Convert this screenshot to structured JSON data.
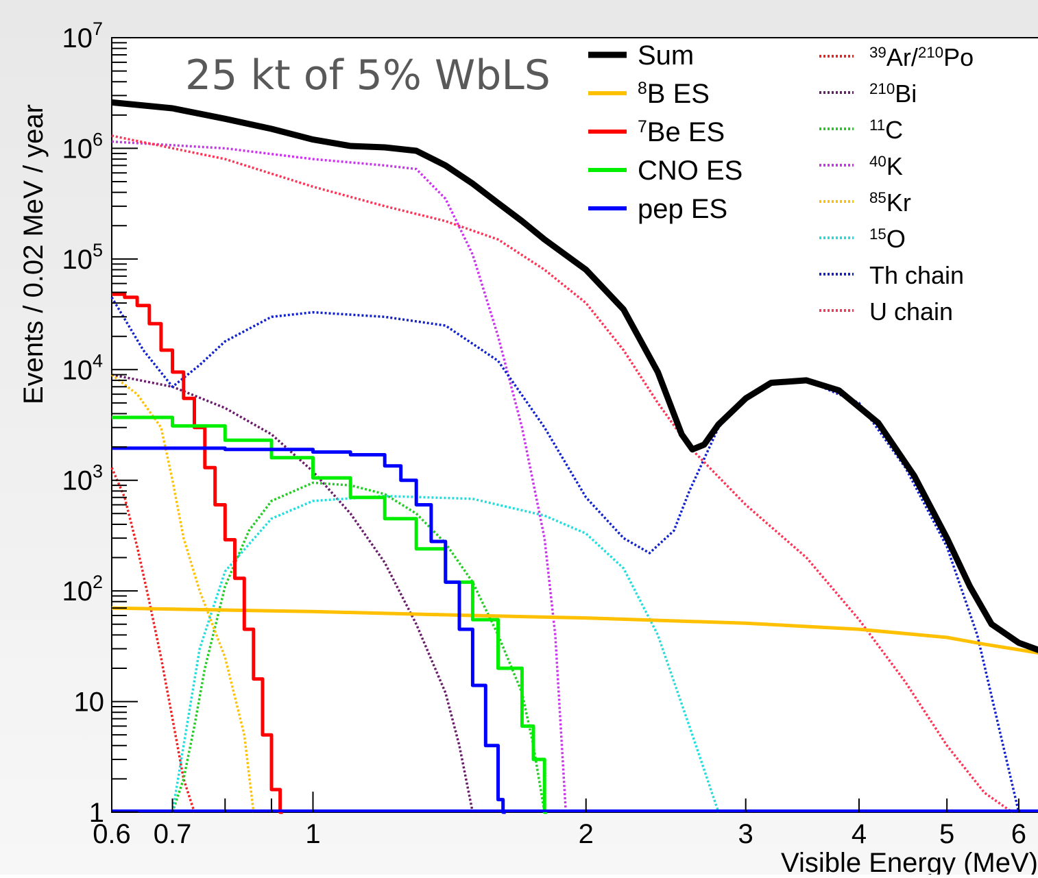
{
  "chart_data": {
    "type": "line",
    "annotation": "25 kt of 5% WbLS",
    "xlabel": "Visible Energy (MeV)",
    "ylabel": "Events / 0.02 MeV / year",
    "xscale": "log",
    "yscale": "log",
    "xlim": [
      0.6,
      6.4
    ],
    "ylim": [
      1,
      10000000
    ],
    "x_ticks": [
      {
        "value": 0.6,
        "label": "0.6"
      },
      {
        "value": 0.7,
        "label": "0.7"
      },
      {
        "value": 1,
        "label": "1"
      },
      {
        "value": 2,
        "label": "2"
      },
      {
        "value": 3,
        "label": "3"
      },
      {
        "value": 4,
        "label": "4"
      },
      {
        "value": 5,
        "label": "5"
      },
      {
        "value": 6,
        "label": "6"
      }
    ],
    "y_ticks": [
      {
        "value": 1,
        "base": "1",
        "exp": ""
      },
      {
        "value": 10,
        "base": "10",
        "exp": ""
      },
      {
        "value": 100,
        "base": "10",
        "exp": "2"
      },
      {
        "value": 1000,
        "base": "10",
        "exp": "3"
      },
      {
        "value": 10000,
        "base": "10",
        "exp": "4"
      },
      {
        "value": 100000,
        "base": "10",
        "exp": "5"
      },
      {
        "value": 1000000,
        "base": "10",
        "exp": "6"
      },
      {
        "value": 10000000,
        "base": "10",
        "exp": "7"
      }
    ],
    "legend_position": "top-right",
    "series": [
      {
        "name": "Sum",
        "color": "#000000",
        "style": "solid-thick",
        "legend_col": 0,
        "points": [
          [
            0.6,
            2600000.0
          ],
          [
            0.7,
            2300000.0
          ],
          [
            0.8,
            1850000.0
          ],
          [
            0.9,
            1500000.0
          ],
          [
            1.0,
            1200000.0
          ],
          [
            1.1,
            1050000.0
          ],
          [
            1.2,
            1020000.0
          ],
          [
            1.3,
            950000.0
          ],
          [
            1.4,
            700000.0
          ],
          [
            1.5,
            480000.0
          ],
          [
            1.6,
            320000.0
          ],
          [
            1.7,
            220000.0
          ],
          [
            1.8,
            150000.0
          ],
          [
            2.0,
            80000.0
          ],
          [
            2.2,
            35000.0
          ],
          [
            2.4,
            9500.0
          ],
          [
            2.55,
            2600.0
          ],
          [
            2.62,
            1900.0
          ],
          [
            2.7,
            2100.0
          ],
          [
            2.8,
            3200.0
          ],
          [
            3.0,
            5500.0
          ],
          [
            3.2,
            7600.0
          ],
          [
            3.5,
            8000.0
          ],
          [
            3.8,
            6500.0
          ],
          [
            4.2,
            3300.0
          ],
          [
            4.6,
            1100.0
          ],
          [
            5.0,
            300.0
          ],
          [
            5.3,
            110.0
          ],
          [
            5.6,
            50.0
          ],
          [
            6.0,
            34.0
          ],
          [
            6.4,
            28.0
          ]
        ]
      },
      {
        "name": "8B ES",
        "label_sup": "8",
        "label_text": "B ES",
        "color": "#ffc000",
        "style": "solid-thick",
        "legend_col": 0,
        "points": [
          [
            0.6,
            70
          ],
          [
            1.0,
            65
          ],
          [
            1.5,
            60
          ],
          [
            2.0,
            57
          ],
          [
            3.0,
            51
          ],
          [
            4.0,
            45
          ],
          [
            5.0,
            38
          ],
          [
            5.5,
            33
          ],
          [
            6.4,
            27
          ]
        ]
      },
      {
        "name": "7Be ES",
        "label_sup": "7",
        "label_text": "Be ES",
        "color": "#ff0000",
        "style": "step-thick",
        "legend_col": 0,
        "points": [
          [
            0.6,
            48000.0
          ],
          [
            0.62,
            45000.0
          ],
          [
            0.64,
            38000.0
          ],
          [
            0.66,
            26000.0
          ],
          [
            0.68,
            15000.0
          ],
          [
            0.7,
            9500.0
          ],
          [
            0.72,
            5500.0
          ],
          [
            0.74,
            3000.0
          ],
          [
            0.76,
            1300.0
          ],
          [
            0.78,
            600.0
          ],
          [
            0.8,
            290.0
          ],
          [
            0.82,
            130.0
          ],
          [
            0.84,
            45
          ],
          [
            0.86,
            16
          ],
          [
            0.88,
            5
          ],
          [
            0.9,
            1.6
          ],
          [
            0.92,
            1
          ]
        ]
      },
      {
        "name": "CNO ES",
        "label_sup": "",
        "label_text": "CNO ES",
        "color": "#00ee00",
        "style": "step-thick",
        "legend_col": 0,
        "points": [
          [
            0.6,
            3700.0
          ],
          [
            0.7,
            3100.0
          ],
          [
            0.8,
            2300.0
          ],
          [
            0.9,
            1600.0
          ],
          [
            1.0,
            1050.0
          ],
          [
            1.1,
            700.0
          ],
          [
            1.2,
            450.0
          ],
          [
            1.3,
            240.0
          ],
          [
            1.4,
            120.0
          ],
          [
            1.5,
            55
          ],
          [
            1.6,
            20
          ],
          [
            1.7,
            6
          ],
          [
            1.75,
            3
          ],
          [
            1.8,
            1
          ]
        ]
      },
      {
        "name": "pep ES",
        "label_sup": "",
        "label_text": "pep ES",
        "color": "#0000ff",
        "style": "step-thick",
        "legend_col": 0,
        "points": [
          [
            0.6,
            1950.0
          ],
          [
            0.8,
            1900.0
          ],
          [
            1.0,
            1800.0
          ],
          [
            1.1,
            1700.0
          ],
          [
            1.2,
            1350.0
          ],
          [
            1.25,
            1000.0
          ],
          [
            1.3,
            600.0
          ],
          [
            1.35,
            280.0
          ],
          [
            1.4,
            120.0
          ],
          [
            1.45,
            45
          ],
          [
            1.5,
            14
          ],
          [
            1.55,
            4
          ],
          [
            1.6,
            1.3
          ],
          [
            1.62,
            1
          ]
        ]
      },
      {
        "name": "39Ar/210Po",
        "label_sup": "39",
        "label_text": "Ar/",
        "label_sup2": "210",
        "label_text2": "Po",
        "color": "#ee2222",
        "style": "dotted",
        "legend_col": 1,
        "points": [
          [
            0.6,
            1300.0
          ],
          [
            0.62,
            700.0
          ],
          [
            0.64,
            250.0
          ],
          [
            0.66,
            80
          ],
          [
            0.68,
            25
          ],
          [
            0.7,
            7
          ],
          [
            0.72,
            2
          ],
          [
            0.74,
            1
          ]
        ]
      },
      {
        "name": "210Bi",
        "label_sup": "210",
        "label_text": "Bi",
        "color": "#6a1b6a",
        "style": "dotted",
        "legend_col": 1,
        "points": [
          [
            0.6,
            9000.0
          ],
          [
            0.7,
            7000.0
          ],
          [
            0.8,
            4500.0
          ],
          [
            0.9,
            2600.0
          ],
          [
            1.0,
            1200.0
          ],
          [
            1.1,
            500.0
          ],
          [
            1.2,
            180.0
          ],
          [
            1.3,
            50
          ],
          [
            1.4,
            12
          ],
          [
            1.45,
            4
          ],
          [
            1.5,
            1
          ]
        ]
      },
      {
        "name": "11C",
        "label_sup": "11",
        "label_text": "C",
        "color": "#22cc22",
        "style": "dotted",
        "legend_col": 1,
        "points": [
          [
            0.7,
            1
          ],
          [
            0.72,
            2
          ],
          [
            0.74,
            6
          ],
          [
            0.76,
            20
          ],
          [
            0.8,
            110.0
          ],
          [
            0.85,
            350.0
          ],
          [
            0.9,
            650.0
          ],
          [
            1.0,
            950.0
          ],
          [
            1.1,
            900.0
          ],
          [
            1.2,
            750.0
          ],
          [
            1.3,
            500.0
          ],
          [
            1.4,
            270.0
          ],
          [
            1.5,
            120.0
          ],
          [
            1.6,
            40
          ],
          [
            1.7,
            12
          ],
          [
            1.75,
            4
          ],
          [
            1.8,
            1
          ]
        ]
      },
      {
        "name": "40K",
        "label_sup": "40",
        "label_text": "K",
        "color": "#cc33ee",
        "style": "dotted",
        "legend_col": 1,
        "points": [
          [
            0.6,
            1150000.0
          ],
          [
            0.8,
            1000000.0
          ],
          [
            1.0,
            800000.0
          ],
          [
            1.2,
            700000.0
          ],
          [
            1.3,
            650000.0
          ],
          [
            1.4,
            350000.0
          ],
          [
            1.5,
            110000.0
          ],
          [
            1.6,
            20000.0
          ],
          [
            1.7,
            3000.0
          ],
          [
            1.8,
            300.0
          ],
          [
            1.85,
            40
          ],
          [
            1.9,
            1
          ]
        ]
      },
      {
        "name": "85Kr",
        "label_sup": "85",
        "label_text": "Kr",
        "color": "#ffc000",
        "style": "dotted",
        "legend_col": 1,
        "points": [
          [
            0.6,
            9000.0
          ],
          [
            0.64,
            6000.0
          ],
          [
            0.68,
            3000.0
          ],
          [
            0.7,
            1000.0
          ],
          [
            0.72,
            300.0
          ],
          [
            0.75,
            100.0
          ],
          [
            0.8,
            25
          ],
          [
            0.84,
            5
          ],
          [
            0.86,
            1
          ]
        ]
      },
      {
        "name": "15O",
        "label_sup": "15",
        "label_text": "O",
        "color": "#22dddd",
        "style": "dotted",
        "legend_col": 1,
        "points": [
          [
            0.7,
            1
          ],
          [
            0.72,
            4
          ],
          [
            0.75,
            30
          ],
          [
            0.8,
            150.0
          ],
          [
            0.9,
            450.0
          ],
          [
            1.0,
            650.0
          ],
          [
            1.2,
            720.0
          ],
          [
            1.5,
            680.0
          ],
          [
            1.8,
            480.0
          ],
          [
            2.0,
            330.0
          ],
          [
            2.2,
            160.0
          ],
          [
            2.4,
            40
          ],
          [
            2.6,
            6
          ],
          [
            2.8,
            1
          ]
        ]
      },
      {
        "name": "Th chain",
        "label_sup": "",
        "label_text": "Th chain",
        "color": "#1122cc",
        "style": "dotted",
        "legend_col": 1,
        "points": [
          [
            0.6,
            45000.0
          ],
          [
            0.65,
            15000.0
          ],
          [
            0.7,
            7000.0
          ],
          [
            0.75,
            11000.0
          ],
          [
            0.8,
            18000.0
          ],
          [
            0.9,
            30000.0
          ],
          [
            1.0,
            33000.0
          ],
          [
            1.2,
            30000.0
          ],
          [
            1.4,
            25000.0
          ],
          [
            1.6,
            12000.0
          ],
          [
            1.8,
            3000.0
          ],
          [
            2.0,
            700.0
          ],
          [
            2.2,
            300.0
          ],
          [
            2.35,
            220.0
          ],
          [
            2.5,
            350.0
          ],
          [
            2.6,
            800.0
          ],
          [
            2.8,
            3000.0
          ],
          [
            3.0,
            5500.0
          ],
          [
            3.2,
            7600.0
          ],
          [
            3.5,
            8000.0
          ],
          [
            4.0,
            5000.0
          ],
          [
            4.5,
            1300.0
          ],
          [
            5.0,
            250.0
          ],
          [
            5.4,
            40
          ],
          [
            5.7,
            6
          ],
          [
            6.0,
            1
          ]
        ]
      },
      {
        "name": "U chain",
        "label_sup": "",
        "label_text": "U chain",
        "color": "#ff3355",
        "style": "dotted",
        "legend_col": 1,
        "points": [
          [
            0.6,
            1300000.0
          ],
          [
            0.8,
            800000.0
          ],
          [
            1.0,
            450000.0
          ],
          [
            1.2,
            300000.0
          ],
          [
            1.4,
            220000.0
          ],
          [
            1.6,
            150000.0
          ],
          [
            1.8,
            80000.0
          ],
          [
            2.0,
            40000.0
          ],
          [
            2.2,
            15000.0
          ],
          [
            2.4,
            5000.0
          ],
          [
            2.6,
            2000.0
          ],
          [
            3.0,
            600.0
          ],
          [
            3.5,
            200.0
          ],
          [
            4.0,
            55
          ],
          [
            4.5,
            15
          ],
          [
            5.0,
            4
          ],
          [
            5.5,
            1.5
          ],
          [
            5.9,
            1
          ]
        ]
      }
    ]
  }
}
